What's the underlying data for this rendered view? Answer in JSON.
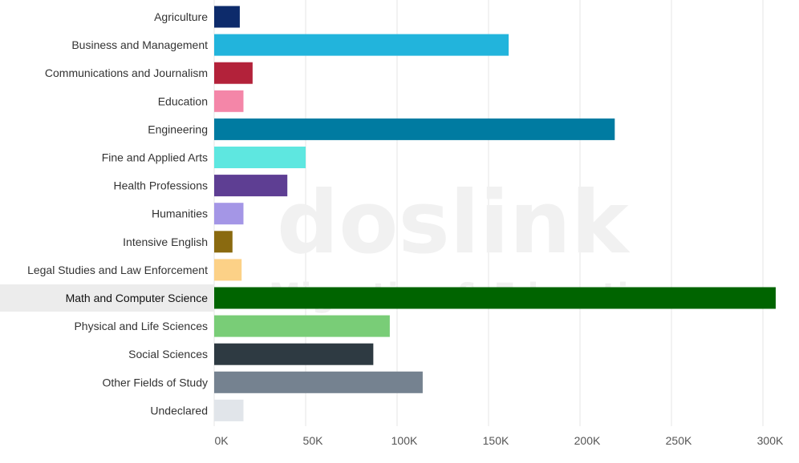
{
  "watermark": {
    "brand": "doslink",
    "tagline": "Migration & Education"
  },
  "chart_data": {
    "type": "bar",
    "orientation": "horizontal",
    "categories": [
      "Agriculture",
      "Business and Management",
      "Communications and Journalism",
      "Education",
      "Engineering",
      "Fine and Applied Arts",
      "Health Professions",
      "Humanities",
      "Intensive English",
      "Legal Studies and Law Enforcement",
      "Math and Computer Science",
      "Physical and Life Sciences",
      "Social Sciences",
      "Other Fields of Study",
      "Undeclared"
    ],
    "values": [
      14000,
      161000,
      21000,
      16000,
      219000,
      50000,
      40000,
      16000,
      10000,
      15000,
      307000,
      96000,
      87000,
      114000,
      16000
    ],
    "colors": [
      "#0d2b6b",
      "#22b4dc",
      "#b3223a",
      "#f486a8",
      "#007ba1",
      "#5ee7e0",
      "#5e3e93",
      "#a496e6",
      "#8a6a10",
      "#fcd187",
      "#006400",
      "#79cd77",
      "#2e3a42",
      "#758290",
      "#e1e5ea"
    ],
    "highlighted_category": "Math and Computer Science",
    "xlim": [
      0,
      310000
    ],
    "x_ticks": [
      0,
      50000,
      100000,
      150000,
      200000,
      250000,
      300000
    ],
    "x_tick_labels": [
      "0K",
      "50K",
      "100K",
      "150K",
      "200K",
      "250K",
      "300K"
    ],
    "grid": true,
    "title": "",
    "xlabel": "",
    "ylabel": ""
  }
}
